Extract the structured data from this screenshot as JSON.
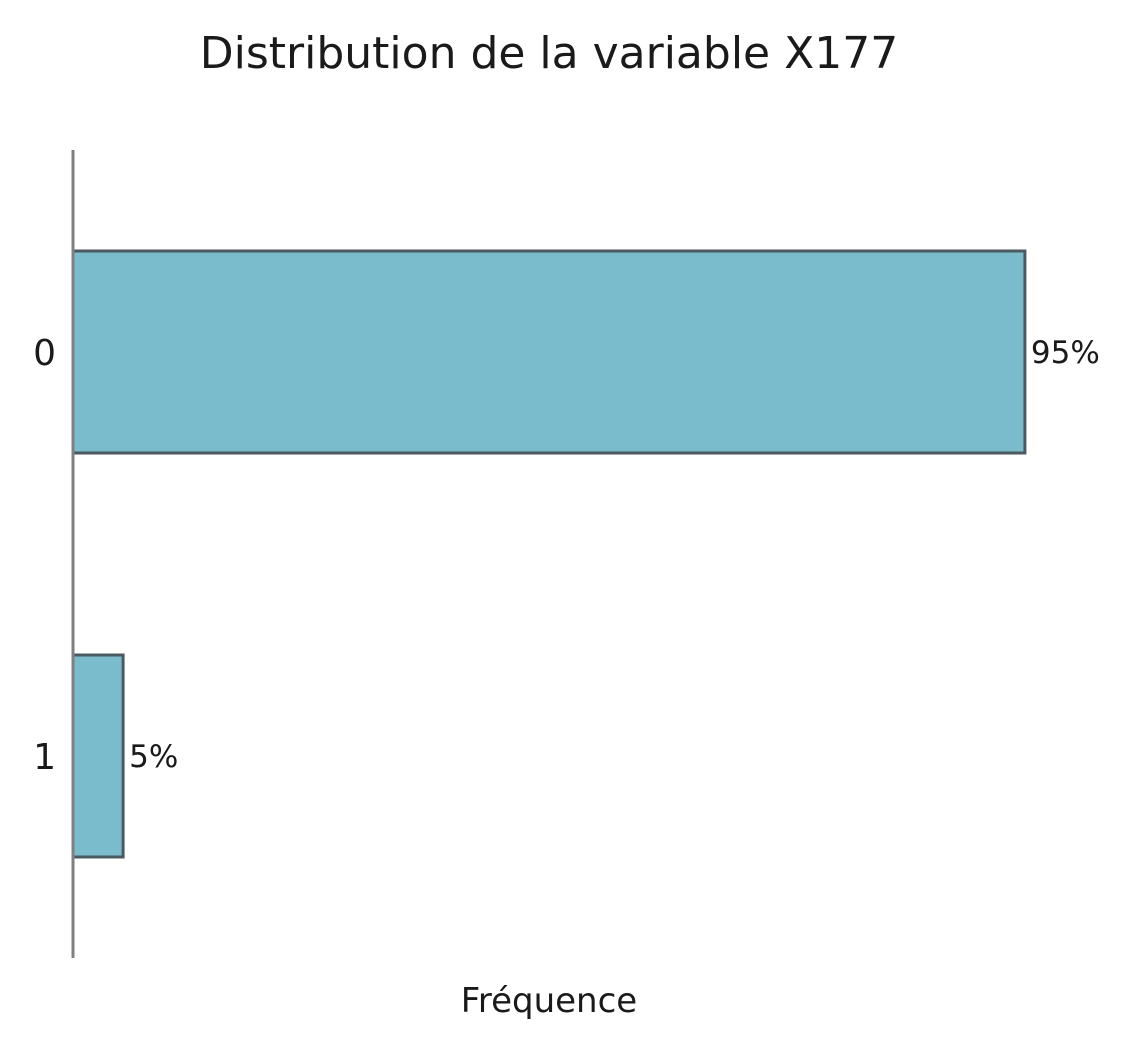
{
  "chart_data": {
    "type": "bar",
    "orientation": "horizontal",
    "title": "Distribution de la variable X177",
    "xlabel": "Fréquence",
    "ylabel": "",
    "categories": [
      "0",
      "1"
    ],
    "values": [
      95,
      5
    ],
    "value_labels": [
      "95%",
      "5%"
    ],
    "xlim": [
      0,
      100
    ],
    "grid": false,
    "legend": "none",
    "colors": {
      "bar_fill": "#7bbccc",
      "bar_edge": "#4a5a60",
      "axis": "#808080"
    }
  }
}
